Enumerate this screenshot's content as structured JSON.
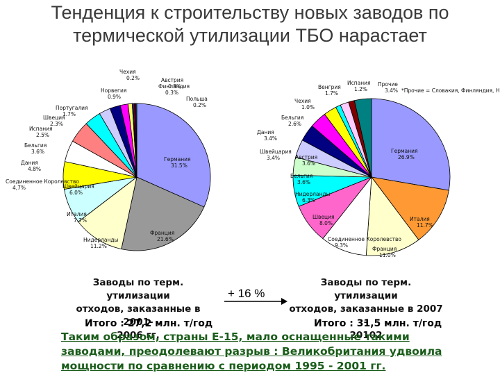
{
  "title": {
    "line1": "Тенденция к строительству новых  заводов по",
    "line2": "термической утилизации ТБО нарастает"
  },
  "chart_data": [
    {
      "type": "pie",
      "title": "",
      "slices": [
        {
          "name": "Германия",
          "value": 31.5,
          "color": "#9999ff"
        },
        {
          "name": "Франция",
          "value": 21.6,
          "color": "#999999"
        },
        {
          "name": "Нидерланды",
          "value": 11.2,
          "color": "#ffffcc"
        },
        {
          "name": "Италия",
          "value": 7.7,
          "color": "#ccffff"
        },
        {
          "name": "Швейцария",
          "value": 6.0,
          "color": "#ffff00"
        },
        {
          "name": "Соединенное Королевство",
          "value": 4.7,
          "color": "#ffffff"
        },
        {
          "name": "Дания",
          "value": 4.8,
          "color": "#ff8080"
        },
        {
          "name": "Бельгия",
          "value": 3.6,
          "color": "#00ffff"
        },
        {
          "name": "Испания",
          "value": 2.5,
          "color": "#ccccff"
        },
        {
          "name": "Швеция",
          "value": 2.3,
          "color": "#000080"
        },
        {
          "name": "Португалия",
          "value": 1.7,
          "color": "#ff00ff"
        },
        {
          "name": "Норвегия",
          "value": 0.9,
          "color": "#ffff66"
        },
        {
          "name": "Чехия",
          "value": 0.2,
          "color": "#00ccff"
        },
        {
          "name": "Австрия",
          "value": 0.3,
          "color": "#800080"
        },
        {
          "name": "Финляндия",
          "value": 0.3,
          "color": "#800000"
        },
        {
          "name": "Польша",
          "value": 0.2,
          "color": "#008080"
        }
      ],
      "labels": [
        {
          "text": "Чехия",
          "pct": "0.2%"
        },
        {
          "text": "Австрия",
          "pct": "0.3%"
        },
        {
          "text": "Норвегия",
          "pct": "0.9%"
        },
        {
          "text": "Финляндия",
          "pct": "0.3%"
        },
        {
          "text": "Польша",
          "pct": "0.2%"
        },
        {
          "text": "Португалия",
          "pct": "1.7%"
        },
        {
          "text": "Швеция",
          "pct": "2.3%"
        },
        {
          "text": "Испания",
          "pct": "2.5%"
        },
        {
          "text": "Бельгия",
          "pct": "3.6%"
        },
        {
          "text": "Дания",
          "pct": "4.8%"
        },
        {
          "text": "Соединенное Королевство",
          "pct": "4,7%"
        },
        {
          "text": "Германия",
          "pct": "31.5%"
        },
        {
          "text": "Швейцария",
          "pct": "6.0%"
        },
        {
          "text": "Италия",
          "pct": "7.7%"
        },
        {
          "text": "Нидерланды",
          "pct": "11.2%"
        },
        {
          "text": "Франция",
          "pct": "21.6%"
        }
      ]
    },
    {
      "type": "pie",
      "title": "",
      "note": "*Прочие = Словакия, Финляндия, Нормандские острова, Андорра",
      "slices": [
        {
          "name": "Германия",
          "value": 26.9,
          "color": "#9999ff"
        },
        {
          "name": "Италия",
          "value": 11.7,
          "color": "#ff9933"
        },
        {
          "name": "Франция",
          "value": 11.0,
          "color": "#ffffcc"
        },
        {
          "name": "Соединенное Королевство",
          "value": 9.3,
          "color": "#ffffff"
        },
        {
          "name": "Швеция",
          "value": 8.0,
          "color": "#ff66cc"
        },
        {
          "name": "Нидерланды",
          "value": 6.3,
          "color": "#00ffff"
        },
        {
          "name": "Бельгия",
          "value": 3.6,
          "color": "#ccffcc"
        },
        {
          "name": "Австрия",
          "value": 3.6,
          "color": "#ccccff"
        },
        {
          "name": "Швейцария",
          "value": 3.4,
          "color": "#000080"
        },
        {
          "name": "Дания",
          "value": 3.4,
          "color": "#ff00ff"
        },
        {
          "name": "Бельгия",
          "value": 2.6,
          "color": "#ffff00"
        },
        {
          "name": "Чехия",
          "value": 1.0,
          "color": "#00ffff"
        },
        {
          "name": "Венгрия",
          "value": 1.7,
          "color": "#ffccff"
        },
        {
          "name": "Испания",
          "value": 1.2,
          "color": "#800000"
        },
        {
          "name": "Прочие",
          "value": 3.4,
          "color": "#008080"
        }
      ],
      "labels": [
        {
          "text": "Германия",
          "pct": "26.9%"
        },
        {
          "text": "Италия",
          "pct": "11.7%"
        },
        {
          "text": "Франция",
          "pct": "11.0%"
        },
        {
          "text": "Соединенное Королевство",
          "pct": "9.3%"
        },
        {
          "text": "Швеция",
          "pct": "8.0%"
        },
        {
          "text": "Нидерланды",
          "pct": "6.3%"
        },
        {
          "text": "Бельгия",
          "pct": "3.6%"
        },
        {
          "text": "Австрия",
          "pct": "3.6%"
        },
        {
          "text": "Швейцария",
          "pct": "3.4%"
        },
        {
          "text": "Дания",
          "pct": "3.4%"
        },
        {
          "text": "Бельгия",
          "pct": "2.6%"
        },
        {
          "text": "Чехия",
          "pct": "1.0%"
        },
        {
          "text": "Венгрия",
          "pct": "1.7%"
        },
        {
          "text": "Испания",
          "pct": "1.2%"
        },
        {
          "text": "Прочие",
          "pct": "3.4%"
        }
      ]
    }
  ],
  "captions": {
    "left": [
      "Заводы по терм. утилизации",
      "отходов, заказанные в  2001-",
      "2006 гг."
    ],
    "right": [
      "Заводы по терм. утилизации",
      "отходов, заказанные в 2007 –",
      "20102"
    ],
    "arrow": "+ 16 %"
  },
  "totals": {
    "left": "Итого : 27,2 млн. т/год",
    "right": "Итого  : 31,5 млн. т/год"
  },
  "conclusion": [
    "Таким образом, страны Е-15,  мало оснащенные такими",
    "заводами, преодолевают разрыв : Великобритания удвоила",
    "мощности по сравнению с периодом 1995  - 2001 гг."
  ],
  "colors": {
    "title": "#3a3a3a",
    "conclusion": "#1a5c1a"
  }
}
